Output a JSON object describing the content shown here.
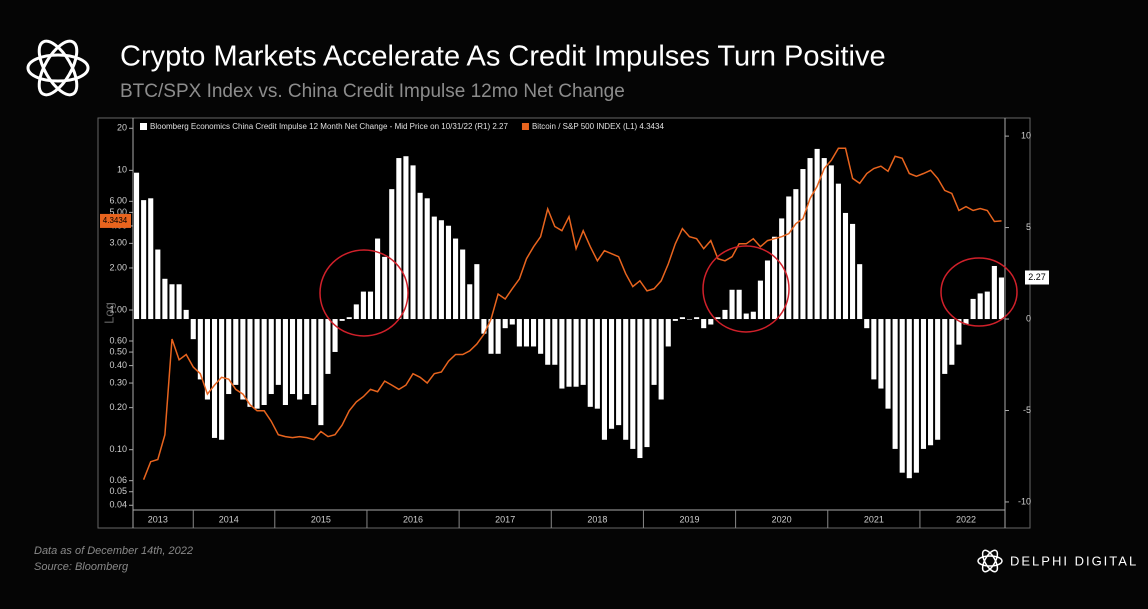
{
  "chart_data": {
    "type": "bar",
    "title": "Crypto Markets Accelerate As Credit Impulses Turn Positive",
    "subtitle": "BTC/SPX Index vs. China Credit Impulse 12mo Net Change",
    "y_scale_label": "Log",
    "log_scale": true,
    "categories": [
      null,
      null,
      null,
      "2013",
      null,
      null,
      null,
      null,
      null,
      null,
      null,
      null,
      null,
      "2014",
      null,
      null,
      null,
      null,
      null,
      null,
      null,
      null,
      null,
      null,
      null,
      null,
      "2015",
      null,
      null,
      null,
      null,
      null,
      null,
      null,
      null,
      null,
      null,
      null,
      null,
      "2016",
      null,
      null,
      null,
      null,
      null,
      null,
      null,
      null,
      null,
      null,
      null,
      null,
      "2017",
      null,
      null,
      null,
      null,
      null,
      null,
      null,
      null,
      null,
      null,
      null,
      null,
      "2018",
      null,
      null,
      null,
      null,
      null,
      null,
      null,
      null,
      null,
      null,
      null,
      null,
      "2019",
      null,
      null,
      null,
      null,
      null,
      null,
      null,
      null,
      null,
      null,
      null,
      null,
      "2020",
      null,
      null,
      null,
      null,
      null,
      null,
      null,
      null,
      null,
      null,
      null,
      null,
      "2021",
      null,
      null,
      null,
      null,
      null,
      null,
      null,
      null,
      null,
      null,
      null,
      null,
      "2022",
      null,
      null,
      null,
      null,
      null
    ],
    "series": [
      {
        "name": "Bloomberg Economics China Credit Impulse 12 Month Net Change - Mid Price on 10/31/22 (R1) 2.27",
        "type": "bar",
        "axis": "y2",
        "color": "#ffffff",
        "values": [
          8.0,
          6.5,
          6.6,
          3.8,
          2.2,
          1.9,
          1.9,
          0.5,
          -1.1,
          -3.3,
          -4.4,
          -6.5,
          -6.6,
          -4.1,
          -3.6,
          -4.4,
          -4.8,
          -4.9,
          -4.7,
          -4.1,
          -3.6,
          -4.7,
          -4.1,
          -4.4,
          -4.1,
          -4.7,
          -5.8,
          -3.0,
          -1.8,
          -0.1,
          0.1,
          0.8,
          1.5,
          1.5,
          4.4,
          3.4,
          7.1,
          8.8,
          8.9,
          8.4,
          6.9,
          6.6,
          5.6,
          5.4,
          5.1,
          4.4,
          3.8,
          1.9,
          3.0,
          -0.8,
          -1.9,
          -1.9,
          -0.5,
          -0.3,
          -1.5,
          -1.5,
          -1.5,
          -1.9,
          -2.5,
          -2.5,
          -3.8,
          -3.7,
          -3.7,
          -3.6,
          -4.8,
          -4.9,
          -6.6,
          -6.0,
          -5.8,
          -6.6,
          -7.1,
          -7.6,
          -7.0,
          -3.6,
          -4.4,
          -1.5,
          -0.1,
          0.1,
          0.0,
          0.1,
          -0.5,
          -0.3,
          0.1,
          0.5,
          1.6,
          1.6,
          0.3,
          0.4,
          2.1,
          3.2,
          4.5,
          5.5,
          6.7,
          7.1,
          8.2,
          8.8,
          9.3,
          8.8,
          8.4,
          7.4,
          5.8,
          5.2,
          3.0,
          -0.5,
          -3.3,
          -3.8,
          -4.9,
          -7.1,
          -8.4,
          -8.7,
          -8.4,
          -7.1,
          -6.9,
          -6.6,
          -3.0,
          -2.5,
          -1.4,
          -0.3,
          1.1,
          1.4,
          1.5,
          2.9,
          2.27
        ]
      },
      {
        "name": "Bitcoin / S&P 500 INDEX (L1) 4.3434",
        "type": "line",
        "axis": "y",
        "color": "#e8641e",
        "values": [
          null,
          0.061,
          0.082,
          0.085,
          0.128,
          0.62,
          0.44,
          0.48,
          0.39,
          0.35,
          0.25,
          0.29,
          0.33,
          0.32,
          0.27,
          0.25,
          0.21,
          0.19,
          0.19,
          0.16,
          0.128,
          0.124,
          0.122,
          0.124,
          0.122,
          0.118,
          0.135,
          0.124,
          0.128,
          0.15,
          0.19,
          0.22,
          0.24,
          0.27,
          0.26,
          0.31,
          0.29,
          0.27,
          0.29,
          0.35,
          0.33,
          0.3,
          0.35,
          0.36,
          0.43,
          0.48,
          0.48,
          0.51,
          0.57,
          0.67,
          0.86,
          1.3,
          1.2,
          1.42,
          1.67,
          2.33,
          2.84,
          3.35,
          5.3,
          3.96,
          3.7,
          4.66,
          2.75,
          3.7,
          2.84,
          2.25,
          2.66,
          2.53,
          2.41,
          1.82,
          1.47,
          1.62,
          1.37,
          1.42,
          1.62,
          2.14,
          2.98,
          3.83,
          3.35,
          3.24,
          2.75,
          3.14,
          2.33,
          2.25,
          2.41,
          2.98,
          2.98,
          3.24,
          2.84,
          3.14,
          3.24,
          3.35,
          3.52,
          4.15,
          4.51,
          6.28,
          7.67,
          10.3,
          11.8,
          14.4,
          14.4,
          8.76,
          8.07,
          9.5,
          10.3,
          10.7,
          9.85,
          12.6,
          12.2,
          9.5,
          9.06,
          9.5,
          10.0,
          8.76,
          7.18,
          6.84,
          5.16,
          5.5,
          5.16,
          5.33,
          5.16,
          4.3,
          4.3434
        ]
      }
    ],
    "ylim": [
      0.037,
      23.7
    ],
    "yticks": [
      20,
      10,
      {
        "value": 6,
        "label": "6.00"
      },
      {
        "value": 5,
        "label": "5.00"
      },
      {
        "value": 4,
        "label": "4.00"
      },
      {
        "value": 3,
        "label": "3.00"
      },
      {
        "value": 2,
        "label": "2.00"
      },
      {
        "value": 1,
        "label": "1.00"
      },
      {
        "value": 0.6,
        "label": "0.60"
      },
      {
        "value": 0.5,
        "label": "0.50"
      },
      {
        "value": 0.4,
        "label": "0.40"
      },
      {
        "value": 0.3,
        "label": "0.30"
      },
      {
        "value": 0.2,
        "label": "0.20"
      },
      {
        "value": 0.1,
        "label": "0.10"
      },
      {
        "value": 0.06,
        "label": "0.06"
      },
      {
        "value": 0.05,
        "label": "0.05"
      },
      {
        "value": 0.04,
        "label": "0.04"
      }
    ],
    "y2lim": [
      -10.44,
      10.99
    ],
    "y2ticks": [
      10,
      5,
      0,
      -5,
      -10
    ]
  },
  "footer": {
    "note": "Data as of December 14th, 2022",
    "source": "Source: Bloomberg",
    "brand": "DELPHI DIGITAL"
  }
}
